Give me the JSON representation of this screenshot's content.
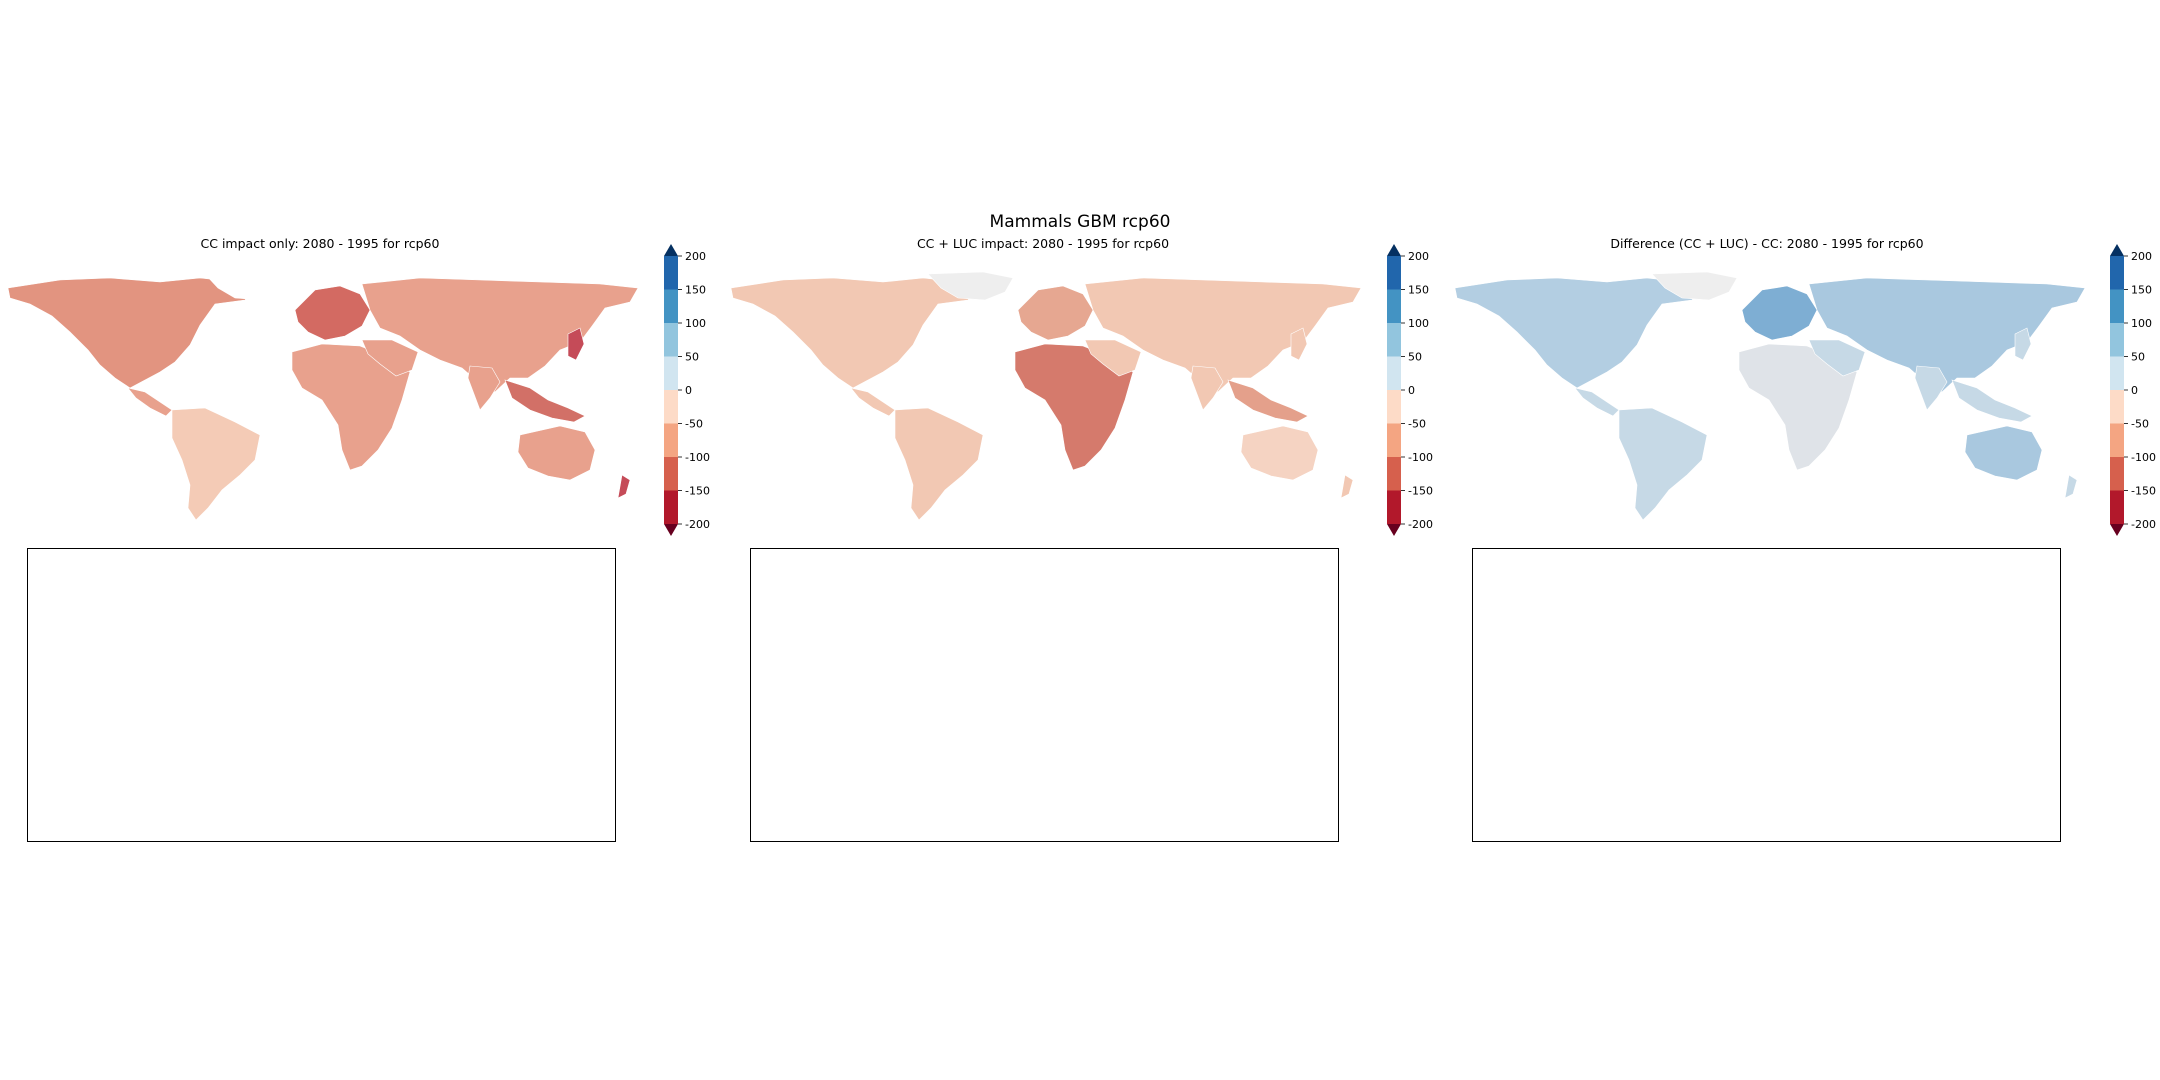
{
  "figure": {
    "suptitle": "Mammals GBM rcp60"
  },
  "panels": [
    {
      "title": "CC impact only: 2080 - 1995 for rcp60",
      "palette": "neg"
    },
    {
      "title": "CC + LUC impact: 2080 - 1995 for rcp60",
      "palette": "mixed"
    },
    {
      "title": "Difference (CC + LUC) - CC: 2080 - 1995 for rcp60",
      "palette": "pos"
    }
  ],
  "colorbar": {
    "ticks": [
      "200",
      "150",
      "100",
      "50",
      "0",
      "-50",
      "-100",
      "-150",
      "-200"
    ],
    "colors": [
      "#053061",
      "#2166ac",
      "#4393c3",
      "#92c5de",
      "#d1e5f0",
      "#fddbc7",
      "#f4a582",
      "#d6604d",
      "#b2182b",
      "#67001f"
    ],
    "range": [
      -200,
      200
    ]
  },
  "legend_colors": {
    "strong_loss": "#b2182b",
    "loss": "#e8a08a",
    "mild_loss": "#f2c8b4",
    "neutral": "#eeeeee",
    "mild_gain": "#c6d9e6",
    "gain": "#8db9d8",
    "strong_gain": "#4a86bd"
  }
}
